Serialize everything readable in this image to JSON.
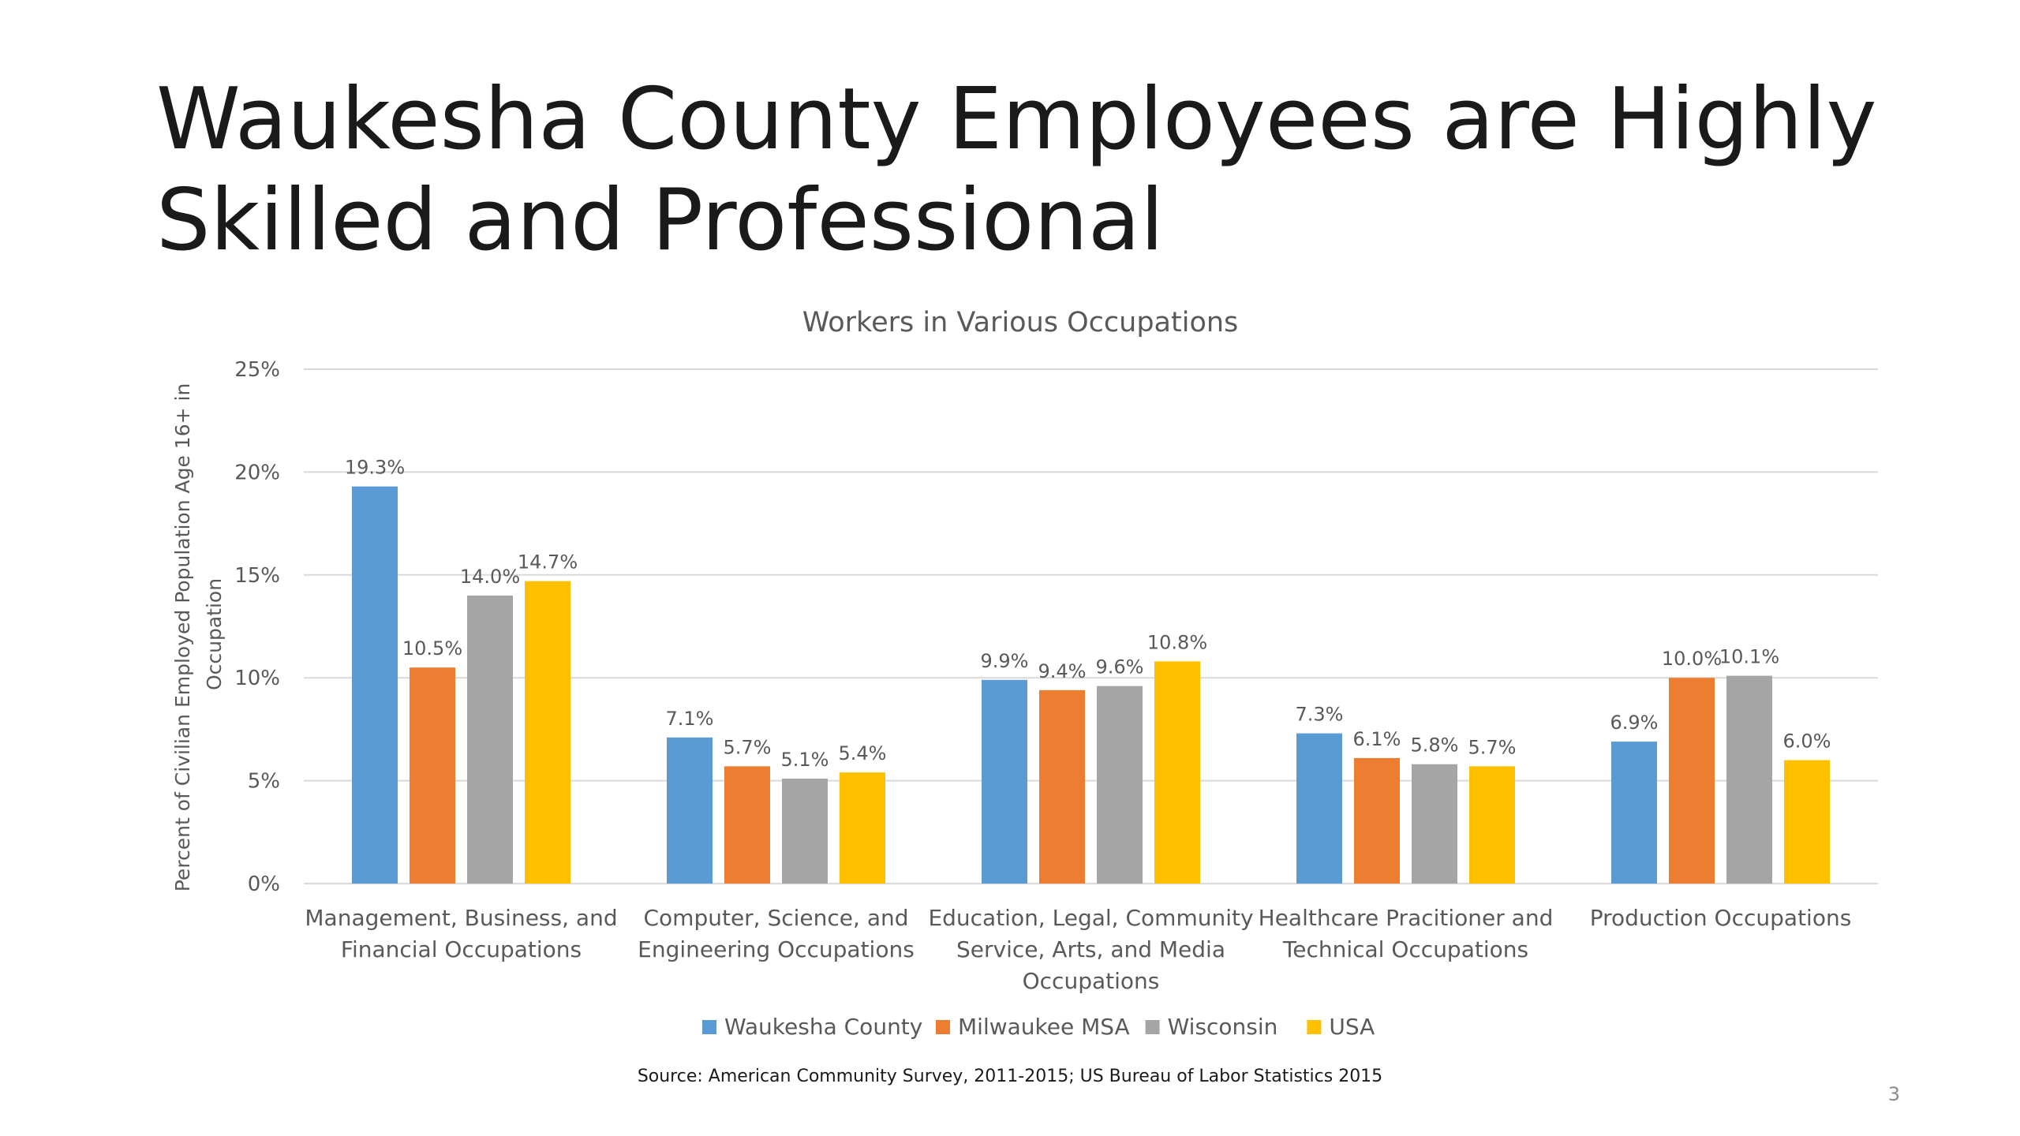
{
  "slide": {
    "title_lines": [
      "Waukesha County Employees are Highly",
      "Skilled and Professional"
    ],
    "source": "Source: American Community Survey, 2011-2015; US Bureau of Labor Statistics 2015",
    "page_number": "3"
  },
  "colors": {
    "Waukesha County": "#5b9bd5",
    "Milwaukee MSA": "#ed7d31",
    "Wisconsin": "#a5a5a5",
    "USA": "#ffc000",
    "gridline": "#d9d9d9",
    "axis_text": "#595959"
  },
  "chart_data": {
    "type": "bar",
    "title": "Workers in Various Occupations",
    "ylabel": "Percent of Civilian Employed Population Age 16+ in Occupation",
    "xlabel": "",
    "ylim": [
      0,
      25
    ],
    "yticks": [
      0,
      5,
      10,
      15,
      20,
      25
    ],
    "ytick_labels": [
      "0%",
      "5%",
      "10%",
      "15%",
      "20%",
      "25%"
    ],
    "grid": true,
    "legend_position": "bottom",
    "categories": [
      [
        "Management, Business, and",
        "Financial Occupations"
      ],
      [
        "Computer, Science, and",
        "Engineering Occupations"
      ],
      [
        "Education, Legal, Community",
        "Service, Arts, and Media",
        "Occupations"
      ],
      [
        "Healthcare Pracitioner and",
        "Technical Occupations"
      ],
      [
        "Production Occupations"
      ]
    ],
    "series": [
      {
        "name": "Waukesha County",
        "values": [
          19.3,
          7.1,
          9.9,
          7.3,
          6.9
        ],
        "labels": [
          "19.3%",
          "7.1%",
          "9.9%",
          "7.3%",
          "6.9%"
        ]
      },
      {
        "name": "Milwaukee MSA",
        "values": [
          10.5,
          5.7,
          9.4,
          6.1,
          10.0
        ],
        "labels": [
          "10.5%",
          "5.7%",
          "9.4%",
          "6.1%",
          "10.0%"
        ]
      },
      {
        "name": "Wisconsin",
        "values": [
          14.0,
          5.1,
          9.6,
          5.8,
          10.1
        ],
        "labels": [
          "14.0%",
          "5.1%",
          "9.6%",
          "5.8%",
          "10.1%"
        ]
      },
      {
        "name": "USA",
        "values": [
          14.7,
          5.4,
          10.8,
          5.7,
          6.0
        ],
        "labels": [
          "14.7%",
          "5.4%",
          "10.8%",
          "5.7%",
          "6.0%"
        ]
      }
    ]
  }
}
